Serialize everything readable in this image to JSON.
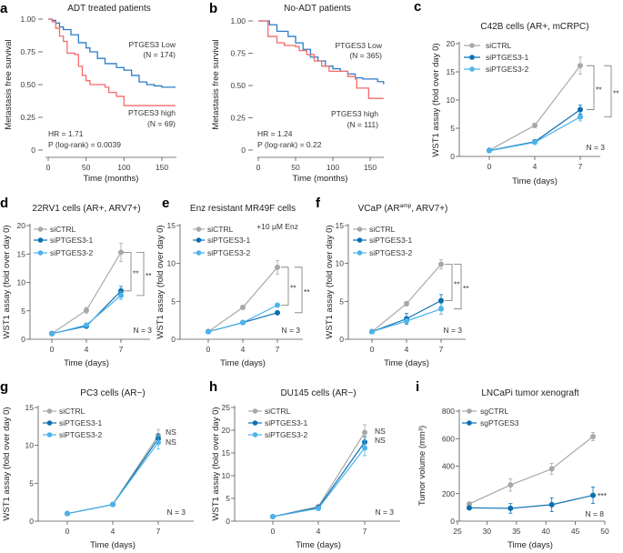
{
  "colors": {
    "siCTRL": "#a8a8a8",
    "siPTGES3-1": "#0b6fb0",
    "siPTGES3-2": "#4db3ea",
    "km_low": "#2b7cc6",
    "km_high": "#f26b6b"
  },
  "chart_data": [
    {
      "panel": "a",
      "type": "line",
      "subtype": "kaplan-meier",
      "title": "ADT treated patients",
      "xlabel": "Time (months)",
      "ylabel": "Metastasis free survival",
      "xlim": [
        0,
        168
      ],
      "ylim": [
        0,
        1
      ],
      "xticks": [
        0,
        50,
        100,
        150
      ],
      "yticks": [
        0,
        0.25,
        0.5,
        0.75,
        1
      ],
      "ytick_labels": [
        "0",
        "0.25",
        "0.50",
        "0.75",
        "1.00"
      ],
      "series": [
        {
          "name": "PTGES3 Low",
          "n_label": "(N = 174)",
          "color_key": "km_low",
          "points": [
            [
              0,
              1
            ],
            [
              5,
              0.99
            ],
            [
              10,
              0.97
            ],
            [
              15,
              0.94
            ],
            [
              20,
              0.92
            ],
            [
              30,
              0.88
            ],
            [
              40,
              0.82
            ],
            [
              50,
              0.78
            ],
            [
              55,
              0.75
            ],
            [
              65,
              0.7
            ],
            [
              75,
              0.66
            ],
            [
              90,
              0.63
            ],
            [
              100,
              0.61
            ],
            [
              110,
              0.57
            ],
            [
              120,
              0.52
            ],
            [
              130,
              0.5
            ],
            [
              140,
              0.49
            ],
            [
              150,
              0.48
            ],
            [
              168,
              0.48
            ]
          ]
        },
        {
          "name": "PTGES3 high",
          "n_label": "(N = 69)",
          "color_key": "km_high",
          "points": [
            [
              0,
              1
            ],
            [
              5,
              0.98
            ],
            [
              10,
              0.93
            ],
            [
              15,
              0.87
            ],
            [
              20,
              0.83
            ],
            [
              25,
              0.74
            ],
            [
              35,
              0.73
            ],
            [
              40,
              0.64
            ],
            [
              45,
              0.57
            ],
            [
              50,
              0.53
            ],
            [
              55,
              0.5
            ],
            [
              75,
              0.48
            ],
            [
              80,
              0.44
            ],
            [
              90,
              0.41
            ],
            [
              100,
              0.34
            ],
            [
              168,
              0.34
            ]
          ]
        }
      ],
      "hr": "HR = 1.71",
      "p_value": "P (log-rank) = 0.0039"
    },
    {
      "panel": "b",
      "type": "line",
      "subtype": "kaplan-meier",
      "title": "No-ADT patients",
      "xlabel": "Time (months)",
      "ylabel": "Metastasis free survival",
      "xlim": [
        0,
        168
      ],
      "ylim": [
        0,
        1
      ],
      "xticks": [
        0,
        50,
        100,
        150
      ],
      "yticks": [
        0,
        0.25,
        0.5,
        0.75,
        1
      ],
      "ytick_labels": [
        "0",
        "0.25",
        "0.50",
        "0.75",
        "1.00"
      ],
      "series": [
        {
          "name": "PTGES3 Low",
          "n_label": "(N = 365)",
          "color_key": "km_low",
          "points": [
            [
              0,
              1
            ],
            [
              10,
              1
            ],
            [
              15,
              0.97
            ],
            [
              25,
              0.92
            ],
            [
              40,
              0.88
            ],
            [
              50,
              0.83
            ],
            [
              60,
              0.78
            ],
            [
              70,
              0.72
            ],
            [
              80,
              0.69
            ],
            [
              90,
              0.65
            ],
            [
              100,
              0.63
            ],
            [
              110,
              0.61
            ],
            [
              120,
              0.59
            ],
            [
              130,
              0.56
            ],
            [
              140,
              0.55
            ],
            [
              160,
              0.53
            ],
            [
              168,
              0.51
            ]
          ]
        },
        {
          "name": "PTGES3 high",
          "n_label": "(N = 111)",
          "color_key": "km_high",
          "points": [
            [
              0,
              1
            ],
            [
              12,
              1
            ],
            [
              13,
              0.88
            ],
            [
              25,
              0.83
            ],
            [
              35,
              0.81
            ],
            [
              50,
              0.8
            ],
            [
              55,
              0.77
            ],
            [
              65,
              0.74
            ],
            [
              75,
              0.69
            ],
            [
              85,
              0.65
            ],
            [
              95,
              0.61
            ],
            [
              110,
              0.61
            ],
            [
              120,
              0.57
            ],
            [
              130,
              0.55
            ],
            [
              132,
              0.48
            ],
            [
              145,
              0.48
            ],
            [
              148,
              0.4
            ],
            [
              168,
              0.4
            ]
          ]
        }
      ],
      "hr": "HR = 1.24",
      "p_value": "P (log-rank) = 0.22"
    },
    {
      "panel": "c",
      "type": "line",
      "title": "C42B cells (AR+, mCRPC)",
      "xlabel": "Time (days)",
      "ylabel": "WST1 assay (fold over day 0)",
      "categories": [
        "0",
        "4",
        "7"
      ],
      "ylim": [
        0,
        20
      ],
      "yticks": [
        0,
        5,
        10,
        15,
        20
      ],
      "series": [
        {
          "name": "siCTRL",
          "values": [
            1.1,
            5.5,
            16.1
          ],
          "error": [
            0.2,
            0.4,
            1.5
          ]
        },
        {
          "name": "siPTGES3-1",
          "values": [
            1.05,
            2.6,
            8.3
          ],
          "error": [
            0.1,
            0.2,
            0.8
          ]
        },
        {
          "name": "siPTGES3-2",
          "values": [
            1.0,
            2.5,
            7.0
          ],
          "error": [
            0.1,
            0.2,
            0.7
          ]
        }
      ],
      "significance": [
        {
          "between": [
            "siCTRL",
            "siPTGES3-1"
          ],
          "label": "**"
        },
        {
          "between": [
            "siCTRL",
            "siPTGES3-2"
          ],
          "label": "**"
        }
      ],
      "n_label": "N = 3"
    },
    {
      "panel": "d",
      "type": "line",
      "title": "22RV1 cells (AR+, ARV7+)",
      "xlabel": "Time (days)",
      "ylabel": "WST1 assay (fold over day 0)",
      "categories": [
        "0",
        "4",
        "7"
      ],
      "ylim": [
        0,
        20
      ],
      "yticks": [
        0,
        5,
        10,
        15,
        20
      ],
      "series": [
        {
          "name": "siCTRL",
          "values": [
            1.0,
            5.1,
            15.3
          ],
          "error": [
            0.1,
            0.5,
            1.6
          ]
        },
        {
          "name": "siPTGES3-1",
          "values": [
            1.0,
            2.3,
            8.5
          ],
          "error": [
            0.1,
            0.2,
            0.8
          ]
        },
        {
          "name": "siPTGES3-2",
          "values": [
            0.95,
            2.5,
            7.7
          ],
          "error": [
            0.1,
            0.2,
            0.7
          ]
        }
      ],
      "significance": [
        {
          "between": [
            "siCTRL",
            "siPTGES3-1"
          ],
          "label": "**"
        },
        {
          "between": [
            "siCTRL",
            "siPTGES3-2"
          ],
          "label": "**"
        }
      ],
      "n_label": "N = 3"
    },
    {
      "panel": "e",
      "type": "line",
      "title": "Enz resistant MR49F cells",
      "xlabel": "Time (days)",
      "ylabel": "WST1 assay (fold over day 0)",
      "categories": [
        "0",
        "4",
        "7"
      ],
      "ylim": [
        0,
        15
      ],
      "yticks": [
        0,
        5,
        10,
        15
      ],
      "series": [
        {
          "name": "siCTRL",
          "values": [
            1.0,
            4.2,
            9.5
          ],
          "error": [
            0.1,
            0.2,
            0.9
          ]
        },
        {
          "name": "siPTGES3-1",
          "values": [
            1.0,
            2.2,
            3.5
          ],
          "error": [
            0.1,
            0.1,
            0.2
          ]
        },
        {
          "name": "siPTGES3-2",
          "values": [
            1.0,
            2.2,
            4.5
          ],
          "error": [
            0.1,
            0.1,
            0.2
          ]
        }
      ],
      "significance": [
        {
          "between": [
            "siCTRL",
            "siPTGES3-2"
          ],
          "label": "**"
        },
        {
          "between": [
            "siCTRL",
            "siPTGES3-1"
          ],
          "label": "**"
        }
      ],
      "treatment": "+10 µM Enz",
      "n_label": "N = 3"
    },
    {
      "panel": "f",
      "type": "line",
      "title": "VCaP (AR",
      "title_sup": "amp",
      "title_end": ", ARV7+)",
      "xlabel": "Time (days)",
      "ylabel": "WST1 assay (fold over day 0)",
      "categories": [
        "0",
        "4",
        "7"
      ],
      "ylim": [
        0,
        15
      ],
      "yticks": [
        0,
        5,
        10,
        15
      ],
      "series": [
        {
          "name": "siCTRL",
          "values": [
            1.0,
            4.7,
            9.9
          ],
          "error": [
            0.1,
            0.3,
            0.6
          ]
        },
        {
          "name": "siPTGES3-1",
          "values": [
            1.0,
            2.7,
            5.1
          ],
          "error": [
            0.1,
            0.7,
            0.8
          ]
        },
        {
          "name": "siPTGES3-2",
          "values": [
            1.0,
            2.4,
            4.0
          ],
          "error": [
            0.1,
            0.3,
            0.7
          ]
        }
      ],
      "significance": [
        {
          "between": [
            "siCTRL",
            "siPTGES3-1"
          ],
          "label": "**"
        },
        {
          "between": [
            "siCTRL",
            "siPTGES3-2"
          ],
          "label": "**"
        }
      ],
      "n_label": "N = 3"
    },
    {
      "panel": "g",
      "type": "line",
      "title": "PC3 cells (AR−)",
      "xlabel": "Time (days)",
      "ylabel": "WST1 assay (fold over day 0)",
      "categories": [
        "0",
        "4",
        "7"
      ],
      "ylim": [
        0,
        15
      ],
      "yticks": [
        0,
        5,
        10,
        15
      ],
      "series": [
        {
          "name": "siCTRL",
          "values": [
            1.0,
            2.2,
            11.3
          ],
          "error": [
            0.05,
            0.1,
            0.8
          ]
        },
        {
          "name": "siPTGES3-1",
          "values": [
            1.0,
            2.2,
            10.9
          ],
          "error": [
            0.05,
            0.1,
            0.6
          ]
        },
        {
          "name": "siPTGES3-2",
          "values": [
            1.0,
            2.2,
            10.4
          ],
          "error": [
            0.05,
            0.1,
            0.9
          ]
        }
      ],
      "ns_labels": [
        "NS",
        "NS"
      ],
      "n_label": "N = 3"
    },
    {
      "panel": "h",
      "type": "line",
      "title": "DU145 cells (AR−)",
      "xlabel": "Time (days)",
      "ylabel": "WST1 assay (fold over day 0)",
      "categories": [
        "0",
        "4",
        "7"
      ],
      "ylim": [
        0,
        25
      ],
      "yticks": [
        0,
        5,
        10,
        15,
        20,
        25
      ],
      "series": [
        {
          "name": "siCTRL",
          "values": [
            1.0,
            3.2,
            19.5
          ],
          "error": [
            0.1,
            0.3,
            1.7
          ]
        },
        {
          "name": "siPTGES3-1",
          "values": [
            1.0,
            3.0,
            17.4
          ],
          "error": [
            0.1,
            0.3,
            1.2
          ]
        },
        {
          "name": "siPTGES3-2",
          "values": [
            1.0,
            2.8,
            16.1
          ],
          "error": [
            0.1,
            0.3,
            1.7
          ]
        }
      ],
      "ns_labels": [
        "NS",
        "NS"
      ],
      "n_label": "N = 3"
    },
    {
      "panel": "i",
      "type": "line",
      "title": "LNCaPi tumor xenograft",
      "xlabel": "Time (days)",
      "ylabel": "Tumor volume (mm³)",
      "xlim": [
        25,
        50
      ],
      "xticks": [
        25,
        30,
        35,
        40,
        45,
        50
      ],
      "ylim": [
        0,
        800
      ],
      "yticks": [
        0,
        200,
        400,
        600,
        800
      ],
      "x": [
        27,
        34,
        41,
        48
      ],
      "series": [
        {
          "name": "sgCTRL",
          "color_key": "siCTRL",
          "values": [
            125,
            263,
            380,
            615
          ],
          "error": [
            15,
            45,
            40,
            30
          ]
        },
        {
          "name": "sgPTGES3",
          "color_key": "siPTGES3-1",
          "values": [
            97,
            93,
            120,
            188
          ],
          "error": [
            10,
            35,
            50,
            60
          ]
        }
      ],
      "significance_label": "***",
      "n_label": "N = 8"
    }
  ]
}
